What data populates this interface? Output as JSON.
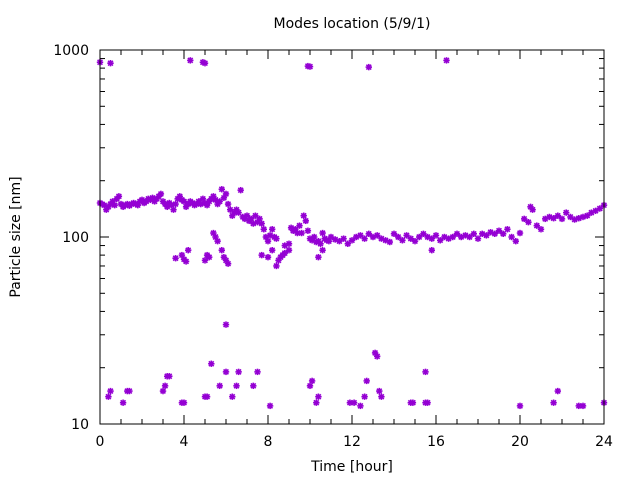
{
  "chart_data": {
    "type": "scatter",
    "title": "Modes location (5/9/1)",
    "xlabel": "Time [hour]",
    "ylabel": "Particle size [nm]",
    "xlim": [
      0,
      24
    ],
    "ylim": [
      10,
      1000
    ],
    "yscale": "log",
    "grid": false,
    "legend": "none",
    "xticks": [
      0,
      4,
      8,
      12,
      16,
      20,
      24
    ],
    "yticks": [
      10,
      100,
      1000
    ],
    "xtick_labels": [
      "0",
      "4",
      "8",
      "12",
      "16",
      "20",
      "24"
    ],
    "ytick_labels": [
      "10",
      "100",
      "1000"
    ],
    "marker_color": "#9400d3",
    "series": [
      {
        "values": [
          [
            0.0,
            860
          ],
          [
            0.5,
            850
          ],
          [
            4.3,
            880
          ],
          [
            4.9,
            860
          ],
          [
            5.0,
            850
          ],
          [
            9.9,
            820
          ],
          [
            10.0,
            815
          ],
          [
            12.8,
            810
          ],
          [
            16.5,
            880
          ],
          [
            0.0,
            152
          ],
          [
            0.1,
            150
          ],
          [
            0.2,
            148
          ],
          [
            0.3,
            140
          ],
          [
            0.4,
            145
          ],
          [
            0.5,
            150
          ],
          [
            0.6,
            155
          ],
          [
            0.7,
            148
          ],
          [
            0.8,
            160
          ],
          [
            0.9,
            165
          ],
          [
            1.0,
            150
          ],
          [
            1.1,
            145
          ],
          [
            1.2,
            148
          ],
          [
            1.3,
            150
          ],
          [
            1.4,
            147
          ],
          [
            1.5,
            150
          ],
          [
            1.6,
            152
          ],
          [
            1.7,
            150
          ],
          [
            1.8,
            148
          ],
          [
            1.9,
            155
          ],
          [
            2.0,
            158
          ],
          [
            2.1,
            152
          ],
          [
            2.2,
            155
          ],
          [
            2.3,
            160
          ],
          [
            2.4,
            158
          ],
          [
            2.5,
            162
          ],
          [
            2.6,
            155
          ],
          [
            2.7,
            160
          ],
          [
            2.8,
            165
          ],
          [
            2.9,
            170
          ],
          [
            3.0,
            155
          ],
          [
            3.1,
            150
          ],
          [
            3.2,
            145
          ],
          [
            3.3,
            152
          ],
          [
            3.4,
            148
          ],
          [
            3.5,
            140
          ],
          [
            3.6,
            150
          ],
          [
            3.7,
            160
          ],
          [
            3.8,
            165
          ],
          [
            3.9,
            158
          ],
          [
            4.0,
            155
          ],
          [
            4.1,
            145
          ],
          [
            4.2,
            150
          ],
          [
            4.3,
            155
          ],
          [
            4.4,
            152
          ],
          [
            4.5,
            148
          ],
          [
            4.6,
            150
          ],
          [
            4.7,
            155
          ],
          [
            4.8,
            150
          ],
          [
            4.9,
            160
          ],
          [
            5.0,
            152
          ],
          [
            5.1,
            148
          ],
          [
            5.2,
            155
          ],
          [
            5.3,
            160
          ],
          [
            5.4,
            165
          ],
          [
            5.5,
            158
          ],
          [
            5.6,
            150
          ],
          [
            5.7,
            155
          ],
          [
            5.8,
            180
          ],
          [
            5.9,
            162
          ],
          [
            6.0,
            170
          ],
          [
            6.1,
            150
          ],
          [
            6.2,
            140
          ],
          [
            6.3,
            130
          ],
          [
            6.4,
            135
          ],
          [
            6.5,
            140
          ],
          [
            6.6,
            135
          ],
          [
            6.7,
            178
          ],
          [
            6.8,
            128
          ],
          [
            6.9,
            125
          ],
          [
            7.0,
            130
          ],
          [
            7.1,
            122
          ],
          [
            7.2,
            125
          ],
          [
            7.3,
            118
          ],
          [
            7.4,
            130
          ],
          [
            7.5,
            120
          ],
          [
            7.6,
            125
          ],
          [
            7.7,
            118
          ],
          [
            7.8,
            110
          ],
          [
            7.9,
            100
          ],
          [
            8.0,
            95
          ],
          [
            8.1,
            102
          ],
          [
            8.2,
            110
          ],
          [
            8.3,
            100
          ],
          [
            8.4,
            98
          ],
          [
            8.8,
            90
          ],
          [
            9.0,
            92
          ],
          [
            9.1,
            112
          ],
          [
            9.2,
            108
          ],
          [
            9.3,
            110
          ],
          [
            9.4,
            105
          ],
          [
            9.5,
            115
          ],
          [
            9.6,
            105
          ],
          [
            9.7,
            130
          ],
          [
            9.8,
            122
          ],
          [
            9.9,
            108
          ],
          [
            10.0,
            98
          ],
          [
            10.1,
            96
          ],
          [
            10.2,
            100
          ],
          [
            10.3,
            94
          ],
          [
            10.4,
            95
          ],
          [
            10.5,
            92
          ],
          [
            10.6,
            105
          ],
          [
            10.7,
            98
          ],
          [
            10.8,
            96
          ],
          [
            10.9,
            95
          ],
          [
            11.0,
            100
          ],
          [
            11.2,
            97
          ],
          [
            11.4,
            95
          ],
          [
            11.6,
            98
          ],
          [
            11.8,
            92
          ],
          [
            12.0,
            96
          ],
          [
            12.2,
            100
          ],
          [
            12.4,
            102
          ],
          [
            12.6,
            98
          ],
          [
            12.8,
            104
          ],
          [
            13.0,
            100
          ],
          [
            13.2,
            102
          ],
          [
            13.4,
            98
          ],
          [
            13.6,
            96
          ],
          [
            13.8,
            94
          ],
          [
            14.0,
            104
          ],
          [
            14.2,
            100
          ],
          [
            14.4,
            96
          ],
          [
            14.6,
            102
          ],
          [
            14.8,
            98
          ],
          [
            15.0,
            95
          ],
          [
            15.2,
            100
          ],
          [
            15.4,
            104
          ],
          [
            15.6,
            100
          ],
          [
            15.8,
            98
          ],
          [
            16.0,
            102
          ],
          [
            16.2,
            96
          ],
          [
            16.4,
            100
          ],
          [
            16.6,
            98
          ],
          [
            16.8,
            100
          ],
          [
            17.0,
            104
          ],
          [
            17.2,
            100
          ],
          [
            17.4,
            102
          ],
          [
            17.6,
            100
          ],
          [
            17.8,
            104
          ],
          [
            18.0,
            98
          ],
          [
            18.2,
            104
          ],
          [
            18.4,
            102
          ],
          [
            18.6,
            106
          ],
          [
            18.8,
            104
          ],
          [
            19.0,
            108
          ],
          [
            19.2,
            104
          ],
          [
            19.4,
            110
          ],
          [
            19.6,
            100
          ],
          [
            19.8,
            95
          ],
          [
            20.0,
            105
          ],
          [
            20.2,
            125
          ],
          [
            20.4,
            120
          ],
          [
            20.5,
            145
          ],
          [
            20.6,
            140
          ],
          [
            20.8,
            115
          ],
          [
            21.0,
            110
          ],
          [
            21.2,
            125
          ],
          [
            21.4,
            128
          ],
          [
            21.6,
            126
          ],
          [
            21.8,
            130
          ],
          [
            22.0,
            125
          ],
          [
            22.2,
            135
          ],
          [
            22.4,
            128
          ],
          [
            22.6,
            124
          ],
          [
            22.8,
            126
          ],
          [
            23.0,
            128
          ],
          [
            23.2,
            130
          ],
          [
            23.4,
            135
          ],
          [
            23.6,
            138
          ],
          [
            23.8,
            142
          ],
          [
            24.0,
            148
          ],
          [
            3.6,
            77
          ],
          [
            3.9,
            80
          ],
          [
            4.0,
            76
          ],
          [
            4.1,
            74
          ],
          [
            4.2,
            85
          ],
          [
            5.0,
            75
          ],
          [
            5.1,
            80
          ],
          [
            5.2,
            78
          ],
          [
            5.4,
            105
          ],
          [
            5.5,
            100
          ],
          [
            5.6,
            95
          ],
          [
            5.8,
            85
          ],
          [
            5.9,
            78
          ],
          [
            6.0,
            75
          ],
          [
            6.1,
            72
          ],
          [
            7.7,
            80
          ],
          [
            8.0,
            78
          ],
          [
            8.2,
            85
          ],
          [
            8.4,
            70
          ],
          [
            8.5,
            75
          ],
          [
            8.6,
            78
          ],
          [
            8.7,
            80
          ],
          [
            8.8,
            82
          ],
          [
            9.0,
            85
          ],
          [
            10.4,
            78
          ],
          [
            10.6,
            85
          ],
          [
            15.8,
            85
          ],
          [
            6.0,
            34
          ],
          [
            0.4,
            14
          ],
          [
            0.5,
            15
          ],
          [
            1.1,
            13
          ],
          [
            1.3,
            15
          ],
          [
            1.4,
            15
          ],
          [
            3.0,
            15
          ],
          [
            3.1,
            16
          ],
          [
            3.2,
            18
          ],
          [
            3.3,
            18
          ],
          [
            3.9,
            13
          ],
          [
            4.0,
            13
          ],
          [
            5.0,
            14
          ],
          [
            5.1,
            14
          ],
          [
            5.3,
            21
          ],
          [
            5.7,
            16
          ],
          [
            6.0,
            19
          ],
          [
            6.3,
            14
          ],
          [
            6.5,
            16
          ],
          [
            6.6,
            19
          ],
          [
            7.3,
            16
          ],
          [
            7.5,
            19
          ],
          [
            8.1,
            12.5
          ],
          [
            10.0,
            16
          ],
          [
            10.1,
            17
          ],
          [
            10.3,
            13
          ],
          [
            10.4,
            14
          ],
          [
            11.9,
            13
          ],
          [
            12.1,
            13
          ],
          [
            12.4,
            12.5
          ],
          [
            12.6,
            14
          ],
          [
            12.7,
            17
          ],
          [
            13.1,
            24
          ],
          [
            13.2,
            23
          ],
          [
            13.3,
            15
          ],
          [
            13.4,
            14
          ],
          [
            14.8,
            13
          ],
          [
            14.9,
            13
          ],
          [
            15.5,
            19
          ],
          [
            15.5,
            13
          ],
          [
            15.6,
            13
          ],
          [
            20.0,
            12.5
          ],
          [
            21.6,
            13
          ],
          [
            21.8,
            15
          ],
          [
            22.8,
            12.5
          ],
          [
            23.0,
            12.5
          ],
          [
            24.0,
            13
          ]
        ]
      }
    ]
  }
}
